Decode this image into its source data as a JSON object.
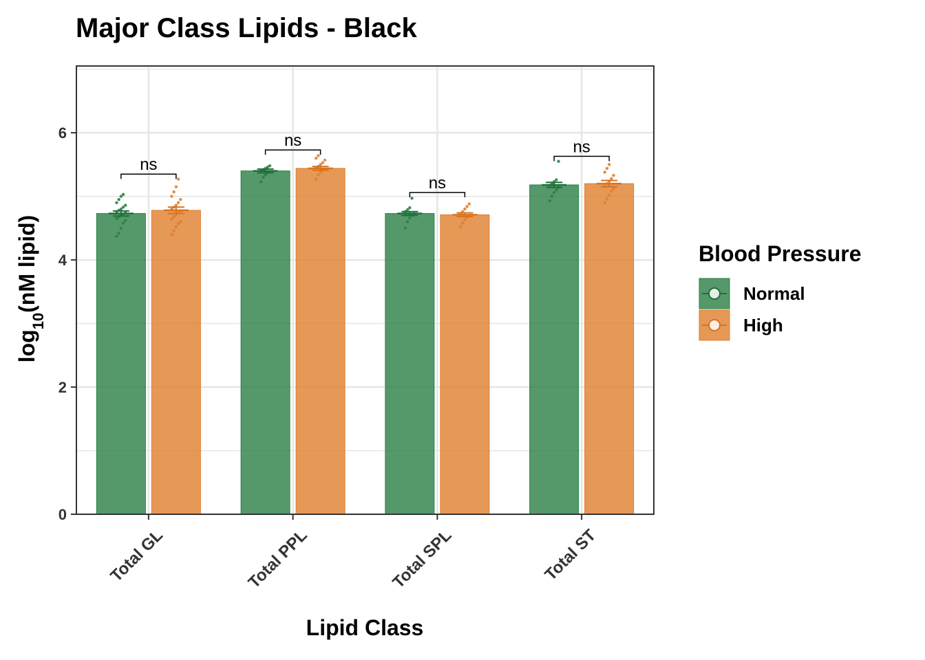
{
  "chart_data": {
    "type": "bar",
    "title": "Major Class Lipids - Black",
    "xlabel": "Lipid Class",
    "ylabel": "log10(nM lipid)",
    "ylabel_parts": {
      "base": "log",
      "sub": "10",
      "rest": "(nM lipid)"
    },
    "ylim": [
      0,
      7.05
    ],
    "yticks": [
      0,
      2,
      4,
      6
    ],
    "grid": true,
    "categories": [
      "Total GL",
      "Total PPL",
      "Total SPL",
      "Total ST"
    ],
    "series": [
      {
        "name": "Normal",
        "color": "#2a8046",
        "values": [
          4.73,
          5.4,
          4.73,
          5.18
        ],
        "se": [
          0.04,
          0.03,
          0.03,
          0.04
        ]
      },
      {
        "name": "High",
        "color": "#e07e2d",
        "values": [
          4.78,
          5.44,
          4.71,
          5.2
        ],
        "se": [
          0.05,
          0.03,
          0.03,
          0.05
        ]
      }
    ],
    "significance": [
      {
        "category": "Total GL",
        "label": "ns",
        "y": 5.35
      },
      {
        "category": "Total PPL",
        "label": "ns",
        "y": 5.73
      },
      {
        "category": "Total SPL",
        "label": "ns",
        "y": 5.06
      },
      {
        "category": "Total ST",
        "label": "ns",
        "y": 5.63
      }
    ],
    "points": [
      {
        "category": "Total GL",
        "series": "Normal",
        "values": [
          4.37,
          4.42,
          4.5,
          4.58,
          4.62,
          4.65,
          4.68,
          4.7,
          4.72,
          4.74,
          4.76,
          4.78,
          4.8,
          4.83,
          4.86,
          4.9,
          4.95,
          5.0,
          5.03
        ]
      },
      {
        "category": "Total GL",
        "series": "High",
        "values": [
          4.4,
          4.46,
          4.52,
          4.57,
          4.6,
          4.64,
          4.68,
          4.71,
          4.74,
          4.77,
          4.8,
          4.83,
          4.86,
          4.9,
          4.95,
          5.0,
          5.07,
          5.15,
          5.27
        ]
      },
      {
        "category": "Total PPL",
        "series": "Normal",
        "values": [
          5.23,
          5.3,
          5.34,
          5.37,
          5.39,
          5.41,
          5.42,
          5.44,
          5.46,
          5.48
        ]
      },
      {
        "category": "Total PPL",
        "series": "High",
        "values": [
          5.27,
          5.34,
          5.38,
          5.41,
          5.43,
          5.45,
          5.47,
          5.5,
          5.53,
          5.57,
          5.6,
          5.64
        ]
      },
      {
        "category": "Total SPL",
        "series": "Normal",
        "values": [
          4.5,
          4.6,
          4.66,
          4.7,
          4.73,
          4.76,
          4.79,
          4.82,
          4.97
        ]
      },
      {
        "category": "Total SPL",
        "series": "High",
        "values": [
          4.52,
          4.58,
          4.63,
          4.67,
          4.7,
          4.73,
          4.76,
          4.8,
          4.84,
          4.88
        ]
      },
      {
        "category": "Total ST",
        "series": "Normal",
        "values": [
          4.93,
          5.0,
          5.06,
          5.1,
          5.14,
          5.17,
          5.2,
          5.23,
          5.26,
          5.55
        ]
      },
      {
        "category": "Total ST",
        "series": "High",
        "values": [
          4.9,
          4.96,
          5.02,
          5.08,
          5.12,
          5.16,
          5.2,
          5.24,
          5.28,
          5.33,
          5.38,
          5.44,
          5.5
        ]
      }
    ],
    "legend": {
      "title": "Blood Pressure",
      "position": "right",
      "items": [
        "Normal",
        "High"
      ]
    }
  }
}
